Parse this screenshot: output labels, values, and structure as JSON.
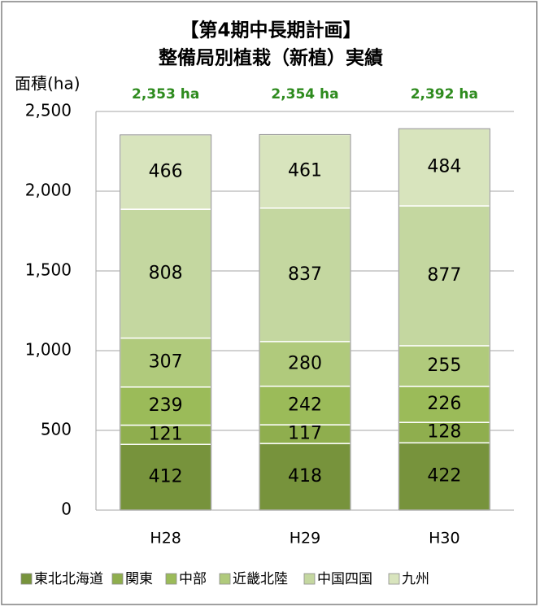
{
  "chart_data": {
    "type": "stacked_bar",
    "title": [
      "【第4期中長期計画】",
      "整備局別植栽（新植）実績"
    ],
    "y_label": "面積(ha)",
    "categories": [
      "H28",
      "H29",
      "H30"
    ],
    "annotations": [
      "2,353 ha",
      "2,354 ha",
      "2,392 ha"
    ],
    "series": [
      {
        "name": "東北北海道",
        "color": "#77933c",
        "values": [
          412,
          418,
          422
        ]
      },
      {
        "name": "関東",
        "color": "#8fae4e",
        "values": [
          121,
          117,
          128
        ]
      },
      {
        "name": "中部",
        "color": "#9bbb59",
        "values": [
          239,
          242,
          226
        ]
      },
      {
        "name": "近畿北陸",
        "color": "#b0ca7c",
        "values": [
          307,
          280,
          255
        ]
      },
      {
        "name": "中国四国",
        "color": "#c4d7a0",
        "values": [
          808,
          837,
          877
        ]
      },
      {
        "name": "九州",
        "color": "#d8e4bd",
        "values": [
          466,
          461,
          484
        ]
      }
    ],
    "ylim": [
      0,
      2500
    ],
    "yticks": [
      0,
      500,
      {
        "value": 1000,
        "label": "1,000"
      },
      {
        "value": 1500,
        "label": "1,500"
      },
      {
        "value": 2000,
        "label": "2,000"
      },
      {
        "value": 2500,
        "label": "2,500"
      }
    ],
    "grid": true
  }
}
